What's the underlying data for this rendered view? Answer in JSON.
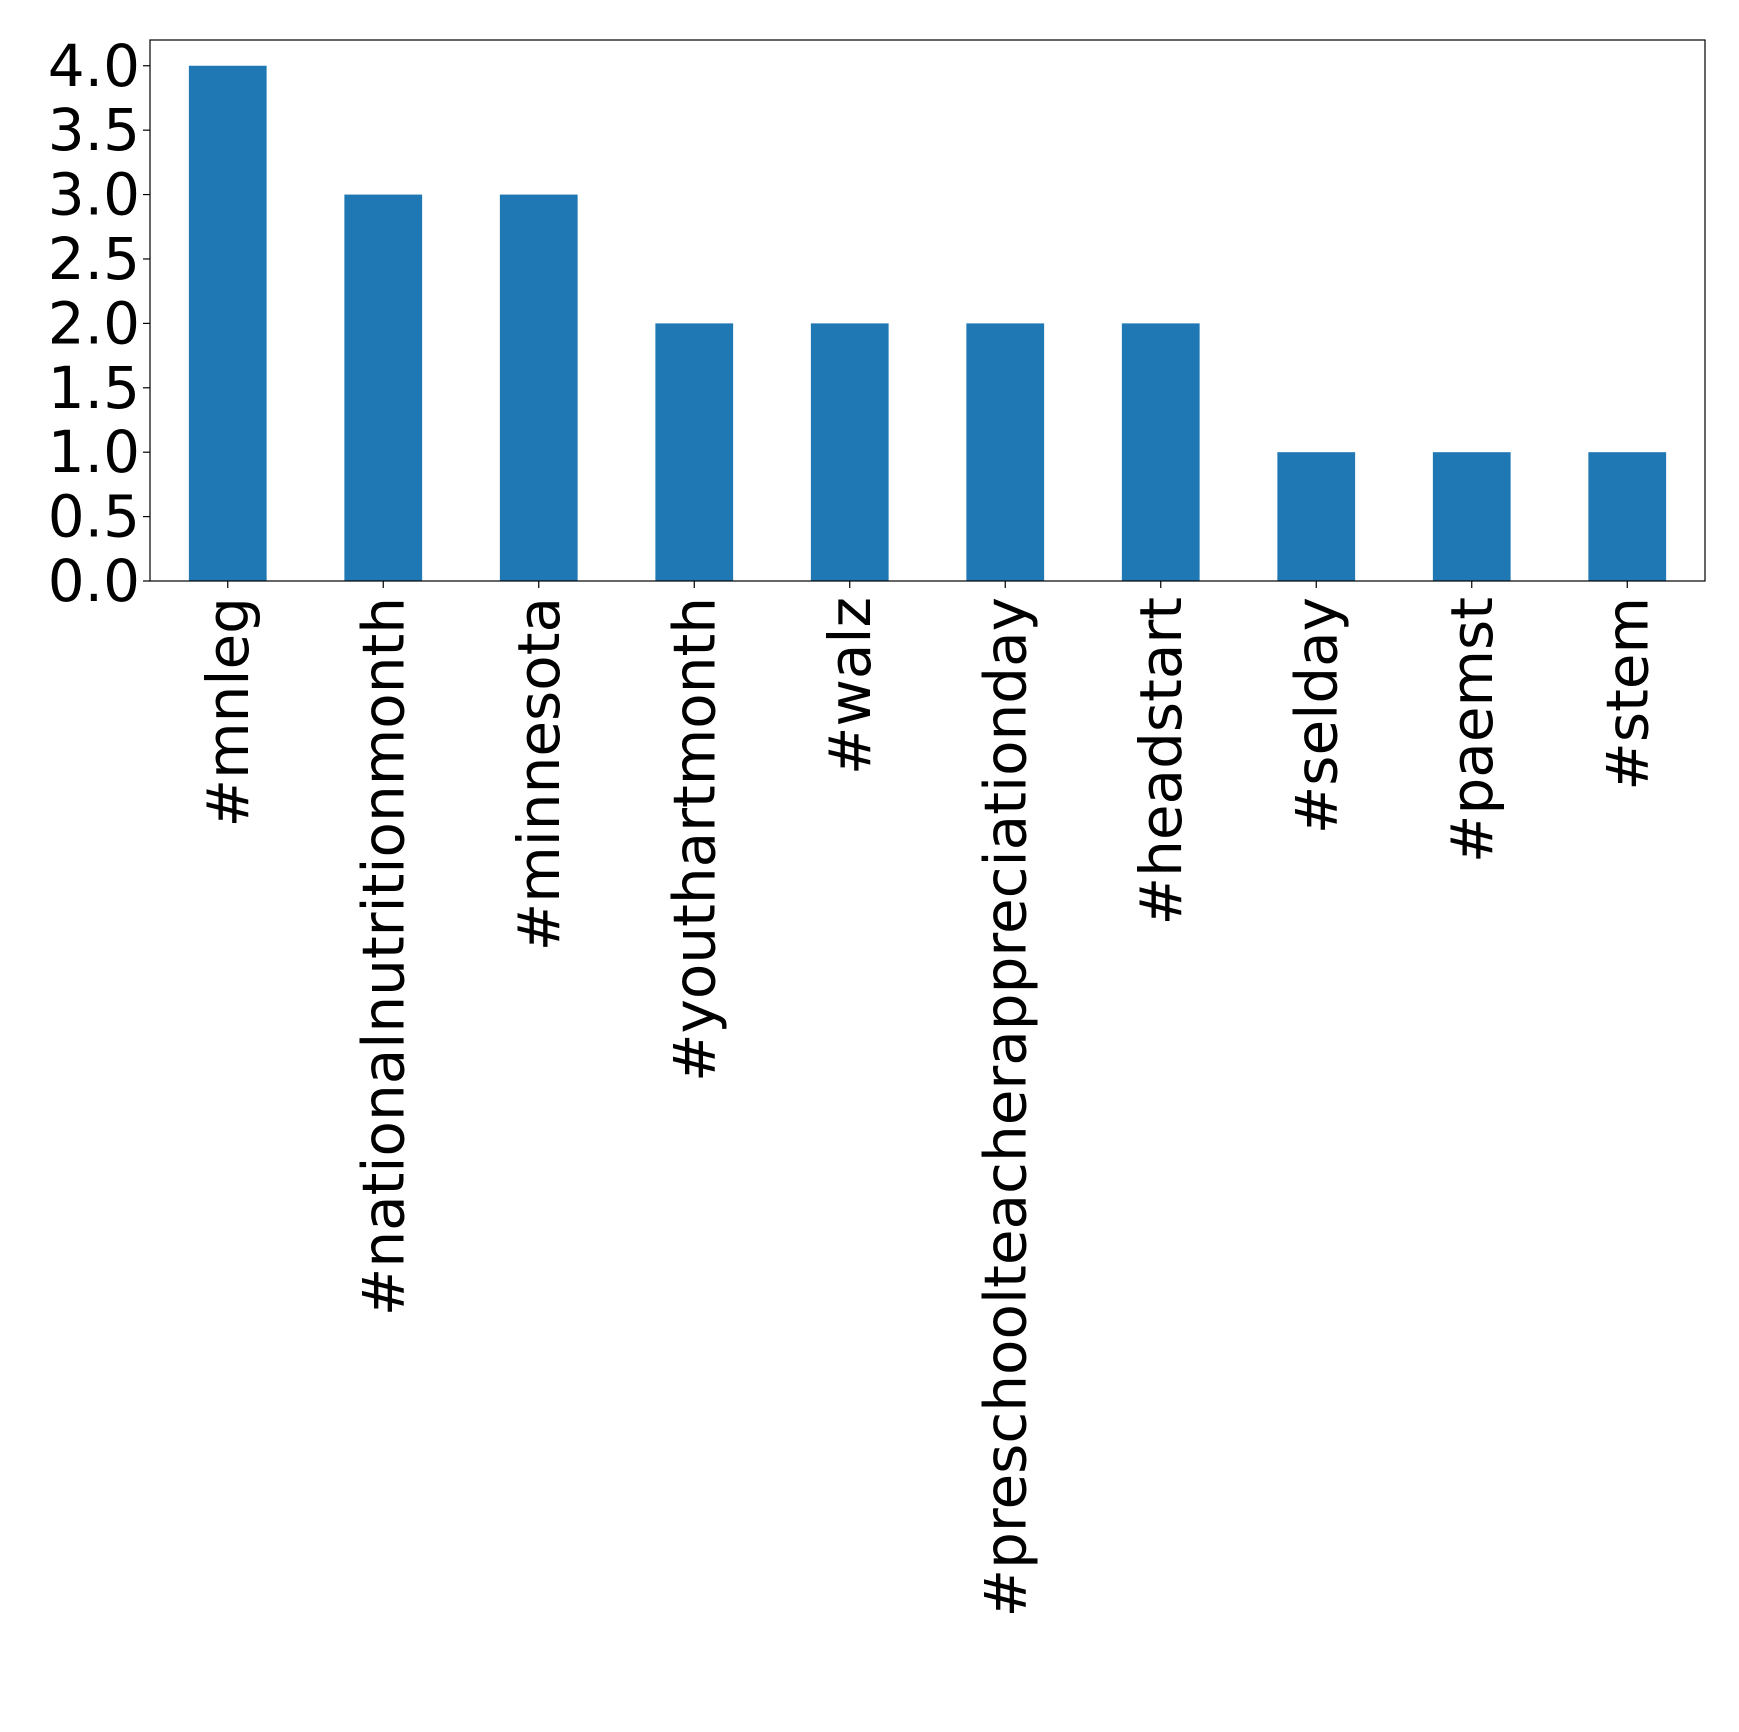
{
  "chart_data": {
    "type": "bar",
    "title": "",
    "xlabel": "",
    "ylabel": "",
    "categories": [
      "#mnleg",
      "#nationalnutritionmonth",
      "#minnesota",
      "#youthartmonth",
      "#walz",
      "#preschoolteacherappreciationday",
      "#headstart",
      "#selday",
      "#paemst",
      "#stem"
    ],
    "values": [
      4,
      3,
      3,
      2,
      2,
      2,
      2,
      1,
      1,
      1
    ],
    "ylim": [
      0,
      4.2
    ],
    "yticks": [
      "0.0",
      "0.5",
      "1.0",
      "1.5",
      "2.0",
      "2.5",
      "3.0",
      "3.5",
      "4.0"
    ],
    "grid": false,
    "legend": "none",
    "bar_color": "#1f77b4"
  }
}
